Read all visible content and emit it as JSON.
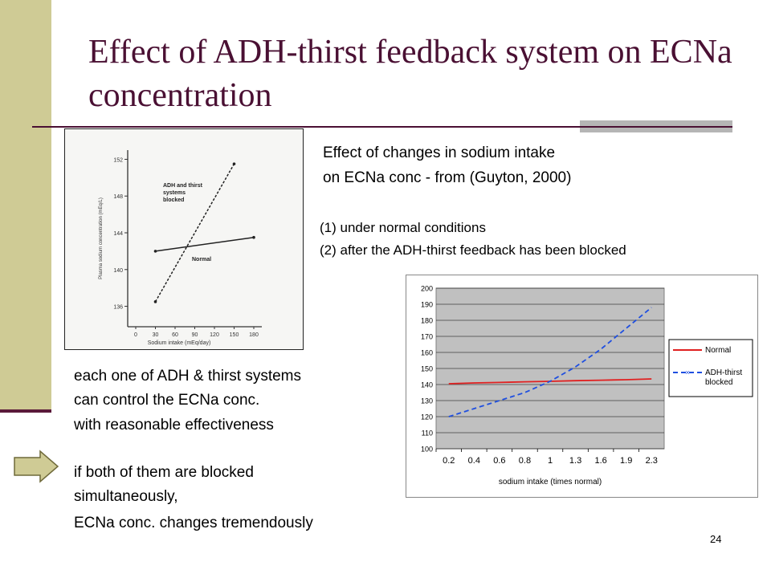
{
  "slide": {
    "title": "Effect of ADH-thirst feedback system on ECNa concentration",
    "page_number": "24"
  },
  "scan_figure": {
    "y_ticks": [
      "152",
      "148",
      "144",
      "140",
      "136"
    ],
    "x_ticks": [
      "0",
      "30",
      "60",
      "90",
      "120",
      "150",
      "180"
    ],
    "ylabel": "Plasma sodium concentration (mEq/L)",
    "xlabel": "Sodium intake (mEq/day)",
    "label_blocked_line1": "ADH and thirst",
    "label_blocked_line2": "systems",
    "label_blocked_line3": "blocked",
    "label_normal": "Normal"
  },
  "caption": {
    "line1": "Effect of changes in sodium intake",
    "line2": "on ECNa conc - from (Guyton, 2000)"
  },
  "conditions": {
    "line1": "(1) under normal conditions",
    "line2": "(2) after the ADH-thirst feedback has been blocked"
  },
  "body_text": {
    "line1": "each one of ADH & thirst systems",
    "line2": "can control the ECNa conc.",
    "line3": "with reasonable effectiveness"
  },
  "conclusion": {
    "line1": "if both of them are blocked",
    "line2": "simultaneously,",
    "line3": "ECNa conc. changes tremendously"
  },
  "colors": {
    "title": "#4a1033",
    "left_bar": "#cfcb95",
    "plot_area": "#c0c0c0",
    "normal_series": "#e02020",
    "blocked_series": "#1f4fe0",
    "arrow_fill": "#cfcb95"
  },
  "chart_data": [
    {
      "type": "line",
      "title": "",
      "xlabel": "Sodium intake (mEq/day)",
      "ylabel": "Plasma sodium concentration (mEq/L)",
      "xlim": [
        0,
        180
      ],
      "ylim": [
        135,
        153
      ],
      "grid": false,
      "series": [
        {
          "name": "Normal",
          "x": [
            30,
            180
          ],
          "y": [
            142,
            143.5
          ]
        },
        {
          "name": "ADH and thirst systems blocked",
          "x": [
            30,
            150
          ],
          "y": [
            136.5,
            151.5
          ]
        }
      ]
    },
    {
      "type": "line",
      "title": "",
      "xlabel": "sodium intake (times normal)",
      "ylabel": "",
      "categories": [
        "0.2",
        "0.4",
        "0.6",
        "0.8",
        "1",
        "1.3",
        "1.6",
        "1.9",
        "2.3"
      ],
      "ylim": [
        100,
        200
      ],
      "y_ticks": [
        "200",
        "190",
        "180",
        "170",
        "160",
        "150",
        "140",
        "130",
        "120",
        "110",
        "100"
      ],
      "grid": true,
      "legend": "right",
      "series": [
        {
          "name": "Normal",
          "values": [
            140.5,
            141,
            141.3,
            141.7,
            142,
            142.4,
            142.7,
            143,
            143.5
          ]
        },
        {
          "name": "ADH-thirst blocked",
          "values": [
            120,
            125,
            130,
            135,
            142,
            151,
            162,
            175,
            188
          ]
        }
      ]
    }
  ]
}
